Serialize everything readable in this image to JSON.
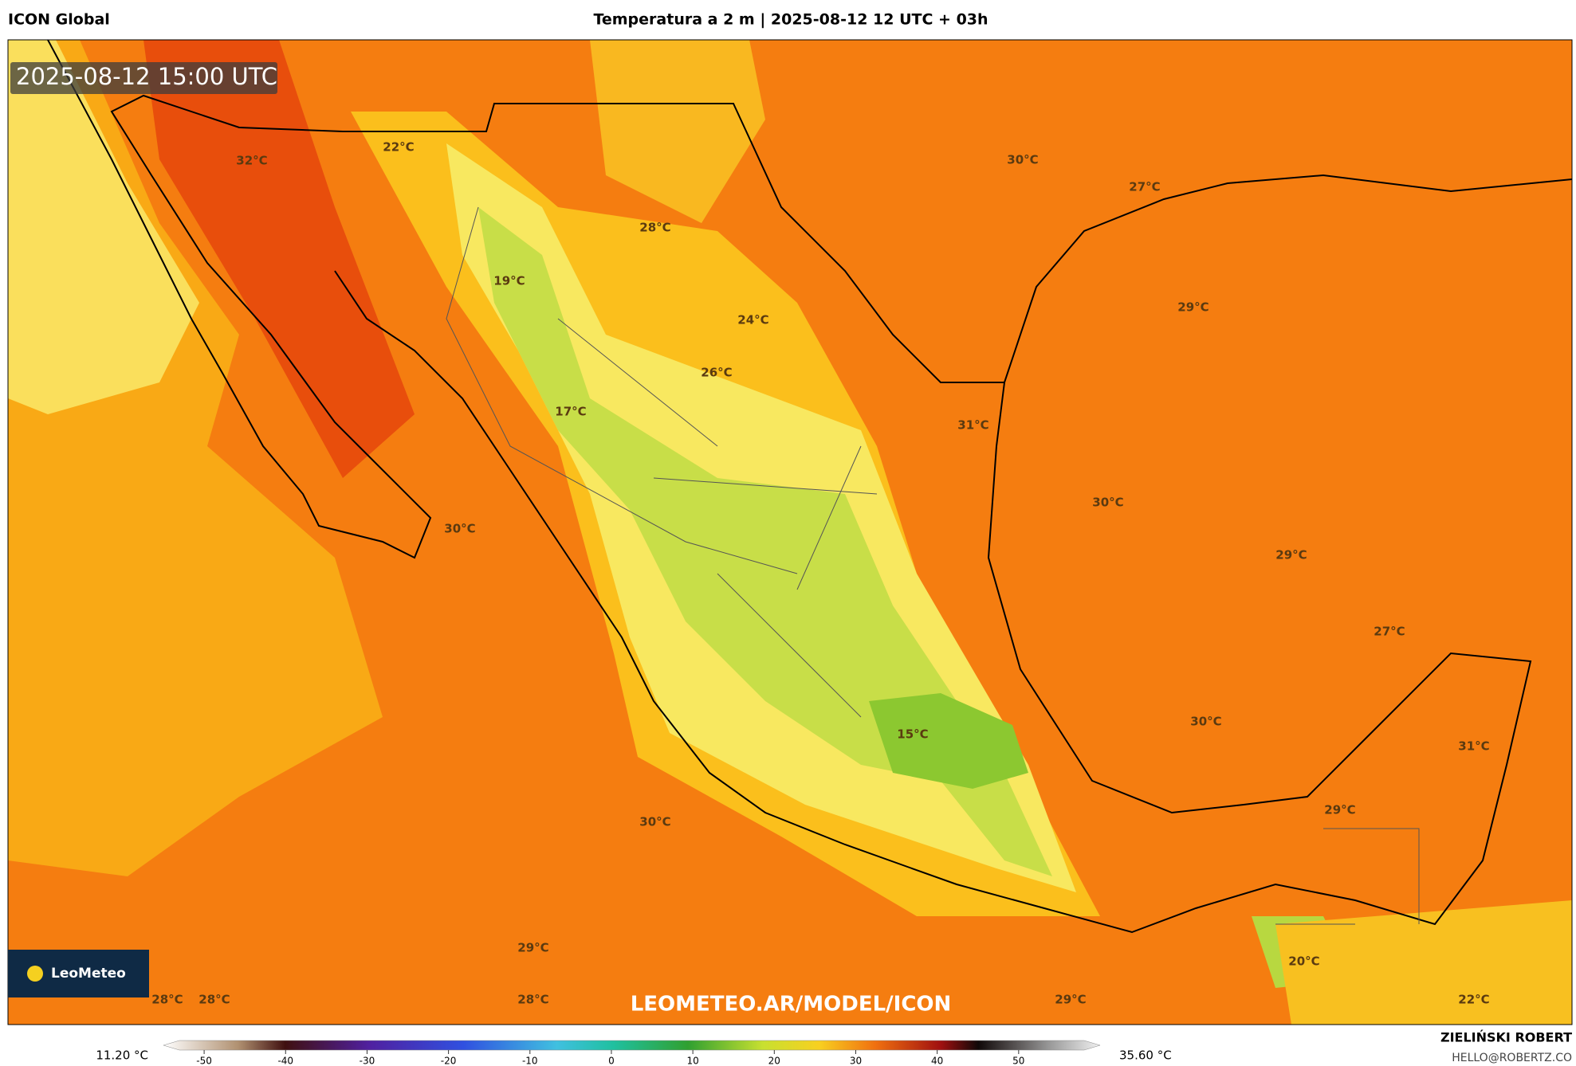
{
  "header": {
    "model": "ICON Global",
    "title": "Temperatura a 2 m | 2025-08-12 12 UTC + 03h"
  },
  "map": {
    "timestamp": "2025-08-12 15:00 UTC",
    "logo": "LeoMeteo",
    "watermark": "LEOMETEO.AR/MODEL/ICON",
    "labels": [
      "32°C",
      "22°C",
      "30°C",
      "27°C",
      "28°C",
      "19°C",
      "24°C",
      "29°C",
      "26°C",
      "17°C",
      "31°C",
      "30°C",
      "30°C",
      "29°C",
      "27°C",
      "15°C",
      "30°C",
      "31°C",
      "29°C",
      "30°C",
      "20°C",
      "29°C",
      "28°C",
      "28°C",
      "28°C",
      "29°C",
      "22°C"
    ]
  },
  "colorbar": {
    "min_label": "11.20 °C",
    "max_label": "35.60 °C",
    "range": [
      -55,
      60
    ],
    "ticks": [
      -50,
      -40,
      -30,
      -20,
      -10,
      0,
      10,
      20,
      30,
      40,
      50
    ]
  },
  "footer": {
    "author": "ZIELIŃSKI ROBERT",
    "contact": "HELLO@ROBERTZ.CO"
  }
}
